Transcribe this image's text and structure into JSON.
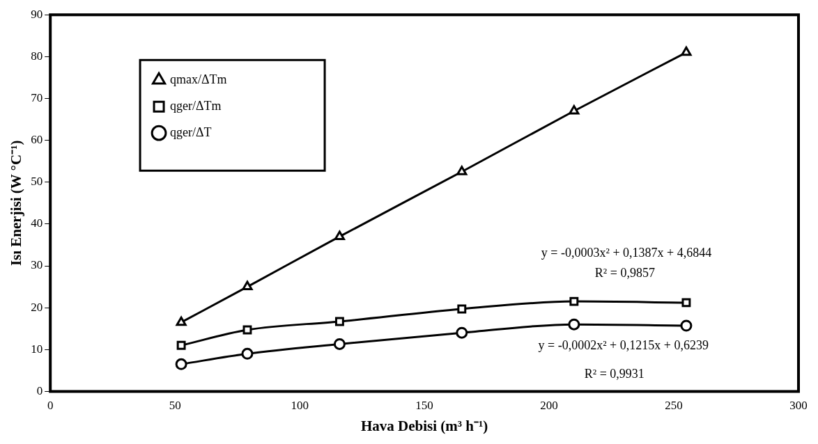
{
  "chart_data": {
    "type": "line",
    "xlabel": "Hava Debisi (m³ h⁻¹)",
    "ylabel": "Isı Enerjisi (W °C⁻¹)",
    "x": [
      52.5,
      79,
      116,
      165,
      210,
      255
    ],
    "series": [
      {
        "name": "qmax/ΔTm",
        "color": "#000000",
        "marker": "triangle",
        "values": [
          16.5,
          25,
          37,
          52.5,
          67,
          81
        ]
      },
      {
        "name": "qger/ΔTm",
        "color": "#000000",
        "marker": "square",
        "values": [
          11,
          14.7,
          16.7,
          19.7,
          21.5,
          21.2
        ]
      },
      {
        "name": "qger/ΔT",
        "color": "#000000",
        "marker": "circle",
        "values": [
          6.5,
          9,
          11.3,
          14,
          16,
          15.7
        ]
      }
    ],
    "xlim": [
      0,
      300
    ],
    "xticks": [
      0,
      50,
      100,
      150,
      200,
      250,
      300
    ],
    "ylim": [
      0,
      90
    ],
    "yticks": [
      0,
      10,
      20,
      30,
      40,
      50,
      60,
      70,
      80,
      90
    ],
    "legend": "top left",
    "line_style": "solid",
    "annotations": [
      "y = -0,0003x² + 0,1387x + 4,6844",
      "R² = 0,9857",
      "y = -0,0002x² + 0,1215x + 0,6239",
      "R² = 0,9931"
    ]
  }
}
